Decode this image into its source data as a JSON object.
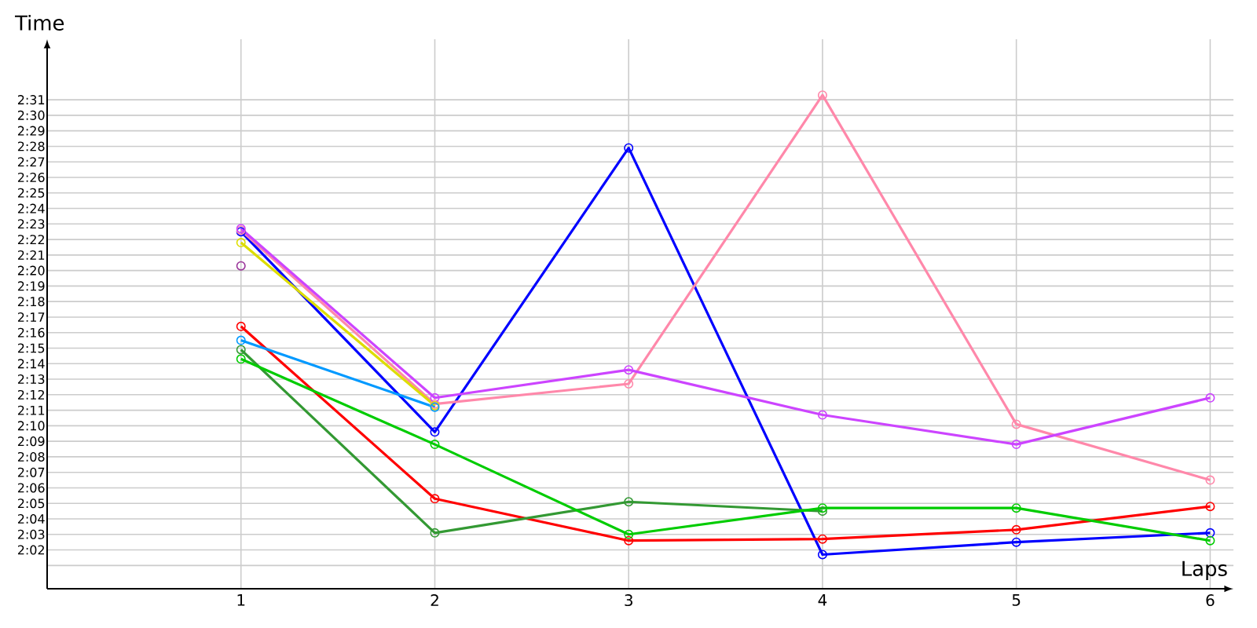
{
  "chart_data": {
    "type": "line",
    "xlabel": "Laps",
    "ylabel": "Time",
    "x": [
      1,
      2,
      3,
      4,
      5,
      6
    ],
    "xlim": [
      0,
      6.12
    ],
    "xticks": [
      1,
      2,
      3,
      4,
      5,
      6
    ],
    "ylim": [
      119.5,
      154.9
    ],
    "yticks": [
      {
        "value": 121,
        "label": null
      },
      {
        "value": 122,
        "label": "2:02"
      },
      {
        "value": 123,
        "label": "2:03"
      },
      {
        "value": 124,
        "label": "2:04"
      },
      {
        "value": 125,
        "label": "2:05"
      },
      {
        "value": 126,
        "label": "2:06"
      },
      {
        "value": 127,
        "label": "2:07"
      },
      {
        "value": 128,
        "label": "2:08"
      },
      {
        "value": 129,
        "label": "2:09"
      },
      {
        "value": 130,
        "label": "2:10"
      },
      {
        "value": 131,
        "label": "2:11"
      },
      {
        "value": 132,
        "label": "2:12"
      },
      {
        "value": 133,
        "label": "2:13"
      },
      {
        "value": 134,
        "label": "2:14"
      },
      {
        "value": 135,
        "label": "2:15"
      },
      {
        "value": 136,
        "label": "2:16"
      },
      {
        "value": 137,
        "label": "2:17"
      },
      {
        "value": 138,
        "label": "2:18"
      },
      {
        "value": 139,
        "label": "2:19"
      },
      {
        "value": 140,
        "label": "2:20"
      },
      {
        "value": 141,
        "label": "2:21"
      },
      {
        "value": 142,
        "label": "2:22"
      },
      {
        "value": 143,
        "label": "2:23"
      },
      {
        "value": 144,
        "label": "2:24"
      },
      {
        "value": 145,
        "label": "2:25"
      },
      {
        "value": 146,
        "label": "2:26"
      },
      {
        "value": 147,
        "label": "2:27"
      },
      {
        "value": 148,
        "label": "2:28"
      },
      {
        "value": 149,
        "label": "2:29"
      },
      {
        "value": 150,
        "label": "2:30"
      },
      {
        "value": 151,
        "label": "2:31"
      }
    ],
    "grid": true,
    "marker": "circle",
    "line_style": "solid",
    "series": [
      {
        "color": "#0000ff",
        "values": [
          142.5,
          129.6,
          147.9,
          121.7,
          122.5,
          123.1
        ]
      },
      {
        "color": "#ff88aa",
        "values": [
          142.6,
          131.4,
          132.7,
          151.3,
          130.1,
          126.5
        ]
      },
      {
        "color": "#cc44ff",
        "values": [
          142.7,
          131.8,
          133.6,
          130.7,
          128.8,
          131.8
        ]
      },
      {
        "color": "#dddd00",
        "values": [
          141.8,
          131.3,
          null,
          null,
          null,
          null
        ]
      },
      {
        "color": "#993399",
        "values": [
          140.3,
          null,
          null,
          null,
          null,
          null
        ]
      },
      {
        "color": "#ff0000",
        "values": [
          136.4,
          125.3,
          122.6,
          122.7,
          123.3,
          124.8
        ]
      },
      {
        "color": "#0099ff",
        "values": [
          135.5,
          131.2,
          null,
          null,
          null,
          null
        ]
      },
      {
        "color": "#339933",
        "values": [
          134.9,
          123.1,
          125.1,
          124.5,
          null,
          null
        ]
      },
      {
        "color": "#00cc00",
        "values": [
          134.3,
          128.8,
          123.0,
          124.7,
          124.7,
          122.6
        ]
      }
    ]
  }
}
